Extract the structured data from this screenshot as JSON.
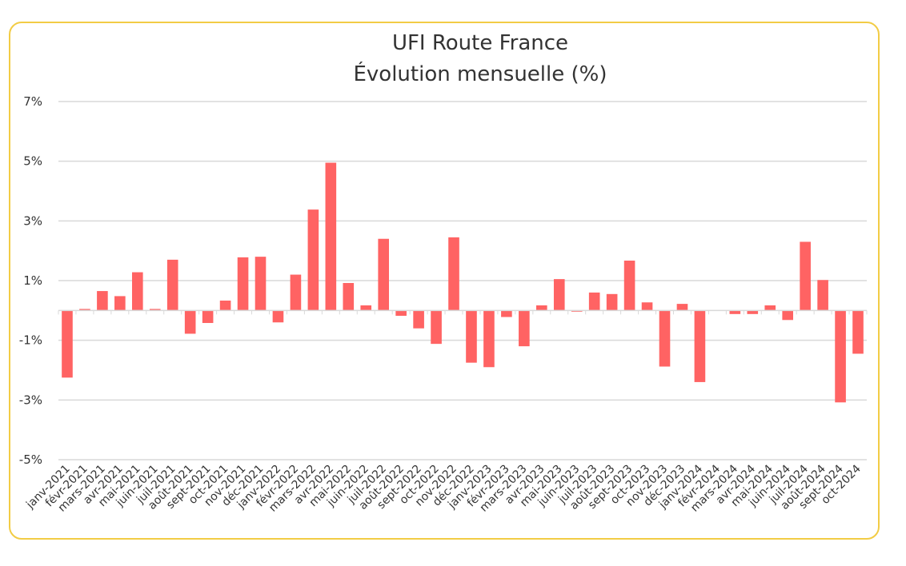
{
  "chart_data": {
    "type": "bar",
    "title": "UFI Route France",
    "subtitle": "Évolution mensuelle (%)",
    "xlabel": "",
    "ylabel": "",
    "ylim": [
      -5,
      7
    ],
    "yticks": [
      -5,
      -3,
      -1,
      1,
      3,
      5,
      7
    ],
    "ytick_labels": [
      "-5%",
      "-3%",
      "-1%",
      "1%",
      "3%",
      "5%",
      "7%"
    ],
    "grid": true,
    "legend": "none",
    "bar_color": "#ff6363",
    "grid_color": "#d9d9d9",
    "border_color": "#f2cc45",
    "categories": [
      "janv-2021",
      "févr-2021",
      "mars-2021",
      "avr-2021",
      "mai-2021",
      "juin-2021",
      "juil-2021",
      "août-2021",
      "sept-2021",
      "oct-2021",
      "nov-2021",
      "déc-2021",
      "janv-2022",
      "févr-2022",
      "mars-2022",
      "avr-2022",
      "mai-2022",
      "juin-2022",
      "juil-2022",
      "août-2022",
      "sept-2022",
      "oct-2022",
      "nov-2022",
      "déc-2022",
      "janv-2023",
      "févr-2023",
      "mars-2023",
      "avr-2023",
      "mai-2023",
      "juin-2023",
      "juil-2023",
      "août-2023",
      "sept-2023",
      "oct-2023",
      "nov-2023",
      "déc-2023",
      "janv-2024",
      "févr-2024",
      "mars-2024",
      "avr-2024",
      "mai-2024",
      "juin-2024",
      "juil-2024",
      "août-2024",
      "sept-2024",
      "oct-2024"
    ],
    "values": [
      -2.25,
      0.05,
      0.65,
      0.48,
      1.28,
      0.05,
      1.7,
      -0.78,
      -0.42,
      0.33,
      1.78,
      1.8,
      -0.4,
      1.2,
      3.38,
      4.95,
      0.92,
      0.17,
      2.4,
      -0.18,
      -0.6,
      -1.12,
      2.45,
      -1.75,
      -1.9,
      -0.22,
      -1.2,
      0.17,
      1.05,
      -0.04,
      0.6,
      0.55,
      1.67,
      0.27,
      -1.88,
      0.22,
      -2.4,
      0.0,
      -0.12,
      -0.12,
      0.17,
      -0.32,
      2.3,
      1.02,
      -3.08,
      -1.45
    ]
  }
}
